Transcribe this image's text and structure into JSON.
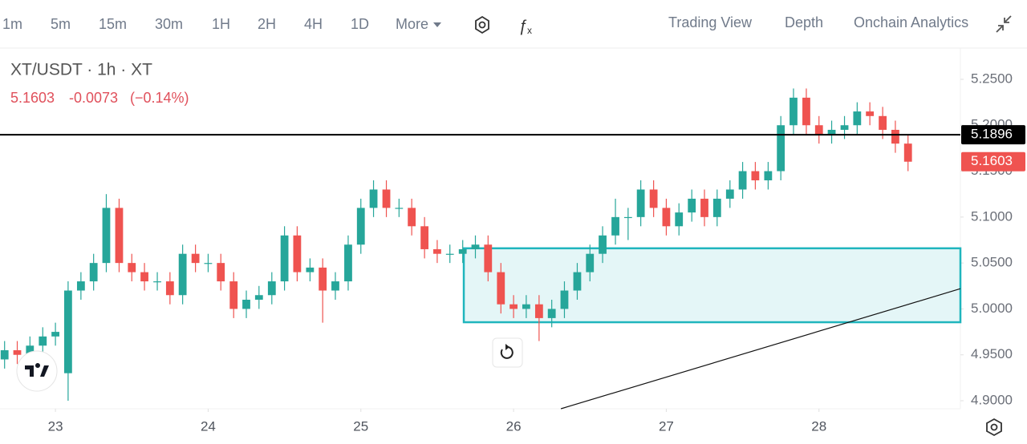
{
  "toolbar": {
    "intervals": [
      "1m",
      "5m",
      "15m",
      "30m",
      "1H",
      "2H",
      "4H",
      "1D",
      "More"
    ],
    "active_interval": "1H",
    "views": [
      "Trading View",
      "Depth",
      "Onchain Analytics"
    ],
    "active_view": "Trading View"
  },
  "chart_data": {
    "type": "candlestick",
    "title": "XT/USDT · 1h · XT",
    "quote": {
      "price": "5.1603",
      "change": "-0.0073",
      "change_pct": "(−0.14%)"
    },
    "up_color": "#26a69a",
    "down_color": "#ef5350",
    "x": [
      22.667,
      22.75,
      22.833,
      22.917,
      23.0,
      23.083,
      23.167,
      23.25,
      23.333,
      23.417,
      23.5,
      23.583,
      23.667,
      23.75,
      23.833,
      23.917,
      24.0,
      24.083,
      24.167,
      24.25,
      24.333,
      24.417,
      24.5,
      24.583,
      24.667,
      24.75,
      24.833,
      24.917,
      25.0,
      25.083,
      25.167,
      25.25,
      25.333,
      25.417,
      25.5,
      25.583,
      25.667,
      25.75,
      25.833,
      25.917,
      26.0,
      26.083,
      26.167,
      26.25,
      26.333,
      26.417,
      26.5,
      26.583,
      26.667,
      26.75,
      26.833,
      26.917,
      27.0,
      27.083,
      27.167,
      27.25,
      27.333,
      27.417,
      27.5,
      27.583,
      27.667,
      27.75,
      27.833,
      27.917,
      28.0,
      28.083,
      28.167,
      28.25,
      28.333,
      28.417,
      28.5,
      28.583
    ],
    "open": [
      4.945,
      4.955,
      4.95,
      4.96,
      4.97,
      4.93,
      5.02,
      5.03,
      5.05,
      5.11,
      5.05,
      5.04,
      5.03,
      5.03,
      5.015,
      5.06,
      5.05,
      5.05,
      5.03,
      5.0,
      5.01,
      5.015,
      5.03,
      5.08,
      5.04,
      5.045,
      5.02,
      5.03,
      5.07,
      5.11,
      5.13,
      5.11,
      5.11,
      5.09,
      5.065,
      5.06,
      5.06,
      5.065,
      5.07,
      5.04,
      5.005,
      5.0,
      5.005,
      4.99,
      5.0,
      5.02,
      5.04,
      5.06,
      5.08,
      5.1,
      5.1,
      5.13,
      5.11,
      5.09,
      5.105,
      5.12,
      5.1,
      5.12,
      5.13,
      5.15,
      5.14,
      5.15,
      5.2,
      5.23,
      5.2,
      5.19,
      5.195,
      5.2,
      5.215,
      5.21,
      5.195,
      5.18
    ],
    "high": [
      4.965,
      4.965,
      4.97,
      4.98,
      4.985,
      5.03,
      5.04,
      5.06,
      5.125,
      5.12,
      5.06,
      5.05,
      5.04,
      5.04,
      5.07,
      5.07,
      5.06,
      5.06,
      5.04,
      5.02,
      5.025,
      5.04,
      5.09,
      5.09,
      5.055,
      5.055,
      5.04,
      5.08,
      5.12,
      5.14,
      5.14,
      5.12,
      5.12,
      5.1,
      5.075,
      5.07,
      5.075,
      5.08,
      5.08,
      5.05,
      5.015,
      5.015,
      5.015,
      5.01,
      5.03,
      5.05,
      5.07,
      5.09,
      5.12,
      5.11,
      5.14,
      5.14,
      5.12,
      5.115,
      5.13,
      5.13,
      5.13,
      5.14,
      5.16,
      5.16,
      5.16,
      5.21,
      5.24,
      5.24,
      5.21,
      5.205,
      5.21,
      5.225,
      5.225,
      5.22,
      5.205,
      5.19
    ],
    "low": [
      4.935,
      4.94,
      4.94,
      4.95,
      4.96,
      4.9,
      5.01,
      5.02,
      5.04,
      5.04,
      5.03,
      5.02,
      5.02,
      5.005,
      5.005,
      5.04,
      5.04,
      5.02,
      4.99,
      4.99,
      5.0,
      5.005,
      5.02,
      5.03,
      5.03,
      4.985,
      5.01,
      5.02,
      5.06,
      5.1,
      5.1,
      5.1,
      5.08,
      5.055,
      5.05,
      5.05,
      5.05,
      5.055,
      5.03,
      4.995,
      4.99,
      4.99,
      4.965,
      4.98,
      4.99,
      5.01,
      5.03,
      5.05,
      5.07,
      5.075,
      5.09,
      5.1,
      5.08,
      5.08,
      5.095,
      5.09,
      5.09,
      5.11,
      5.12,
      5.13,
      5.13,
      5.14,
      5.19,
      5.19,
      5.18,
      5.18,
      5.185,
      5.19,
      5.2,
      5.185,
      5.17,
      5.15
    ],
    "close": [
      4.955,
      4.95,
      4.96,
      4.97,
      4.975,
      5.02,
      5.03,
      5.05,
      5.11,
      5.05,
      5.04,
      5.03,
      5.03,
      5.015,
      5.06,
      5.05,
      5.05,
      5.03,
      5.0,
      5.01,
      5.015,
      5.03,
      5.08,
      5.04,
      5.045,
      5.02,
      5.03,
      5.07,
      5.11,
      5.13,
      5.11,
      5.11,
      5.09,
      5.065,
      5.06,
      5.06,
      5.065,
      5.07,
      5.04,
      5.005,
      5.0,
      5.005,
      4.99,
      5.0,
      5.02,
      5.04,
      5.06,
      5.08,
      5.1,
      5.1,
      5.13,
      5.11,
      5.09,
      5.105,
      5.12,
      5.1,
      5.12,
      5.13,
      5.15,
      5.14,
      5.15,
      5.2,
      5.23,
      5.2,
      5.19,
      5.195,
      5.2,
      5.215,
      5.21,
      5.195,
      5.18,
      5.1603
    ],
    "xlim": [
      22.637,
      28.926
    ],
    "xticks": [
      23,
      24,
      25,
      26,
      27,
      28
    ],
    "ylim": [
      4.8913,
      5.284
    ],
    "yticks": [
      {
        "value": 4.9,
        "label": "4.9000"
      },
      {
        "value": 4.95,
        "label": "4.9500"
      },
      {
        "value": 5.0,
        "label": "5.0000"
      },
      {
        "value": 5.05,
        "label": "5.0500"
      },
      {
        "value": 5.1,
        "label": "5.1000"
      },
      {
        "value": 5.15,
        "label": "5.1500"
      },
      {
        "value": 5.2,
        "label": "5.2000"
      },
      {
        "value": 5.25,
        "label": "5.2500"
      }
    ],
    "horizontal_line": 5.1896,
    "last_price": 5.1603,
    "zone": {
      "x_start": 25.674,
      "top": 5.066,
      "bottom": 4.9855,
      "color": "#1fb5bd"
    },
    "trend_line": {
      "x": [
        26.31,
        28.926
      ],
      "y": [
        4.8913,
        5.022
      ]
    },
    "grid": false
  }
}
